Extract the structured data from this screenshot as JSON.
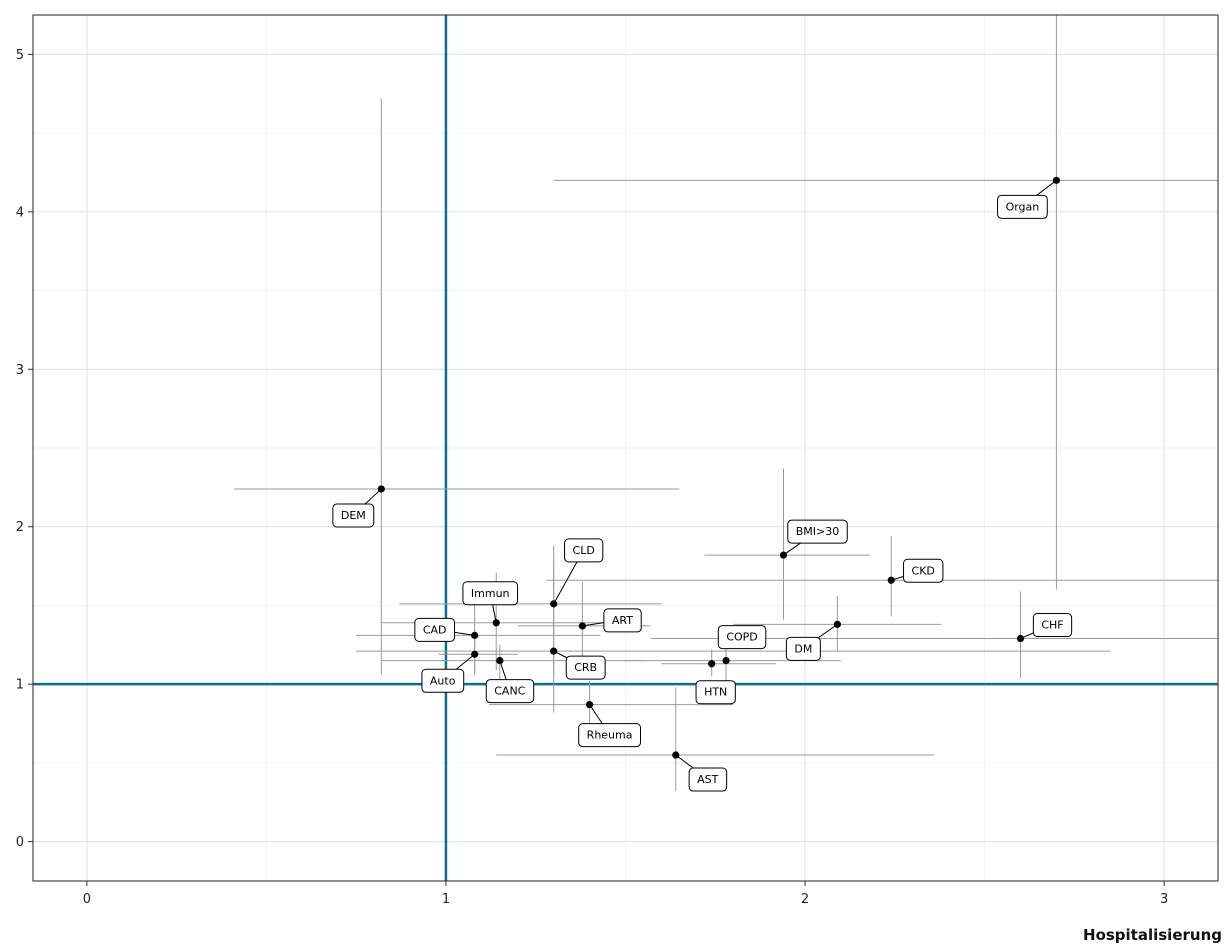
{
  "chart_data": {
    "type": "scatter",
    "title": "",
    "xlabel": "Hospitalisierung",
    "ylabel": "",
    "xlim": [
      -0.15,
      3.15
    ],
    "ylim": [
      -0.25,
      5.25
    ],
    "x_ticks": [
      "0",
      "1",
      "2",
      "3"
    ],
    "y_ticks": [
      "0",
      "1",
      "2",
      "3",
      "4",
      "5"
    ],
    "grid": true,
    "reference_lines": {
      "x": 1,
      "y": 1,
      "color": "#0b6e99"
    },
    "points": [
      {
        "label": "Organ",
        "x": 2.7,
        "y": 4.2,
        "x_lo": 1.3,
        "x_hi": 3.15,
        "y_lo": 1.6,
        "y_hi": 5.25
      },
      {
        "label": "DEM",
        "x": 0.82,
        "y": 2.24,
        "x_lo": 0.41,
        "x_hi": 1.65,
        "y_lo": 1.06,
        "y_hi": 4.72
      },
      {
        "label": "BMI>30",
        "x": 1.94,
        "y": 1.82,
        "x_lo": 1.72,
        "x_hi": 2.18,
        "y_lo": 1.41,
        "y_hi": 2.37
      },
      {
        "label": "CKD",
        "x": 2.24,
        "y": 1.66,
        "x_lo": 1.28,
        "x_hi": 3.15,
        "y_lo": 1.43,
        "y_hi": 1.94
      },
      {
        "label": "CHF",
        "x": 2.6,
        "y": 1.29,
        "x_lo": 1.57,
        "x_hi": 3.15,
        "y_lo": 1.04,
        "y_hi": 1.59
      },
      {
        "label": "CLD",
        "x": 1.3,
        "y": 1.51,
        "x_lo": 0.87,
        "x_hi": 1.6,
        "y_lo": 1.05,
        "y_hi": 1.88
      },
      {
        "label": "Immun",
        "x": 1.14,
        "y": 1.39,
        "x_lo": 0.82,
        "x_hi": 1.52,
        "y_lo": 1.09,
        "y_hi": 1.71
      },
      {
        "label": "ART",
        "x": 1.38,
        "y": 1.37,
        "x_lo": 1.2,
        "x_hi": 1.57,
        "y_lo": 1.15,
        "y_hi": 1.65
      },
      {
        "label": "CAD",
        "x": 1.08,
        "y": 1.31,
        "x_lo": 0.75,
        "x_hi": 1.43,
        "y_lo": 1.07,
        "y_hi": 1.56
      },
      {
        "label": "DM",
        "x": 2.09,
        "y": 1.38,
        "x_lo": 1.8,
        "x_hi": 2.38,
        "y_lo": 1.21,
        "y_hi": 1.56
      },
      {
        "label": "COPD",
        "x": 1.78,
        "y": 1.15,
        "x_lo": 1.5,
        "x_hi": 2.1,
        "y_lo": 1.02,
        "y_hi": 1.3
      },
      {
        "label": "HTN",
        "x": 1.74,
        "y": 1.13,
        "x_lo": 1.6,
        "x_hi": 1.92,
        "y_lo": 1.05,
        "y_hi": 1.22
      },
      {
        "label": "Auto",
        "x": 1.08,
        "y": 1.19,
        "x_lo": 0.98,
        "x_hi": 1.2,
        "y_lo": 1.06,
        "y_hi": 1.33
      },
      {
        "label": "CRB",
        "x": 1.3,
        "y": 1.21,
        "x_lo": 0.75,
        "x_hi": 2.85,
        "y_lo": 0.82,
        "y_hi": 1.78
      },
      {
        "label": "CANC",
        "x": 1.15,
        "y": 1.15,
        "x_lo": 0.82,
        "x_hi": 1.55,
        "y_lo": 1.03,
        "y_hi": 1.25
      },
      {
        "label": "Rheuma",
        "x": 1.4,
        "y": 0.87,
        "x_lo": 1.12,
        "x_hi": 1.8,
        "y_lo": 0.73,
        "y_hi": 1.02
      },
      {
        "label": "AST",
        "x": 1.64,
        "y": 0.55,
        "x_lo": 1.14,
        "x_hi": 2.36,
        "y_lo": 0.32,
        "y_hi": 0.98
      }
    ]
  }
}
